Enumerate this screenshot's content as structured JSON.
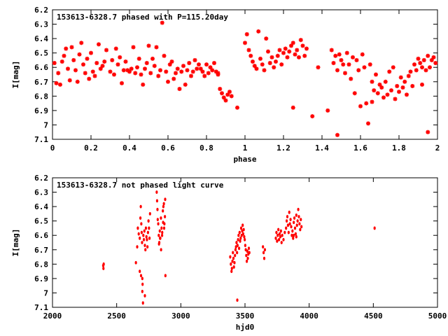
{
  "chart_data": [
    {
      "type": "scatter",
      "title": "153613-6328.7 phased with P=115.20day",
      "xlabel": "phase",
      "ylabel": "I[mag]",
      "xlim": [
        0,
        2
      ],
      "ylim": [
        6.2,
        7.1
      ],
      "y_inverted": true,
      "grid": false,
      "marker_color": "#ff0000",
      "marker": "asterisk",
      "x_ticks": [
        "0",
        "0.2",
        "0.4",
        "0.6",
        "0.8",
        "1",
        "1.2",
        "1.4",
        "1.6",
        "1.8",
        "2"
      ],
      "y_ticks": [
        "6.2",
        "6.3",
        "6.4",
        "6.5",
        "6.6",
        "6.7",
        "6.8",
        "6.9",
        "7",
        "7.1"
      ],
      "points": [
        [
          0.01,
          6.57
        ],
        [
          0.02,
          6.71
        ],
        [
          0.03,
          6.64
        ],
        [
          0.04,
          6.72
        ],
        [
          0.05,
          6.56
        ],
        [
          0.06,
          6.52
        ],
        [
          0.07,
          6.47
        ],
        [
          0.08,
          6.61
        ],
        [
          0.09,
          6.69
        ],
        [
          0.1,
          6.46
        ],
        [
          0.11,
          6.55
        ],
        [
          0.12,
          6.62
        ],
        [
          0.13,
          6.7
        ],
        [
          0.14,
          6.51
        ],
        [
          0.15,
          6.43
        ],
        [
          0.16,
          6.58
        ],
        [
          0.17,
          6.64
        ],
        [
          0.18,
          6.54
        ],
        [
          0.19,
          6.68
        ],
        [
          0.2,
          6.5
        ],
        [
          0.21,
          6.63
        ],
        [
          0.22,
          6.66
        ],
        [
          0.23,
          6.57
        ],
        [
          0.24,
          6.44
        ],
        [
          0.25,
          6.61
        ],
        [
          0.26,
          6.59
        ],
        [
          0.27,
          6.56
        ],
        [
          0.28,
          6.48
        ],
        [
          0.3,
          6.63
        ],
        [
          0.31,
          6.55
        ],
        [
          0.32,
          6.65
        ],
        [
          0.33,
          6.47
        ],
        [
          0.34,
          6.58
        ],
        [
          0.35,
          6.53
        ],
        [
          0.36,
          6.71
        ],
        [
          0.37,
          6.62
        ],
        [
          0.38,
          6.56
        ],
        [
          0.39,
          6.62
        ],
        [
          0.4,
          6.63
        ],
        [
          0.41,
          6.61
        ],
        [
          0.42,
          6.46
        ],
        [
          0.43,
          6.64
        ],
        [
          0.44,
          6.6
        ],
        [
          0.45,
          6.54
        ],
        [
          0.46,
          6.65
        ],
        [
          0.47,
          6.72
        ],
        [
          0.48,
          6.61
        ],
        [
          0.49,
          6.57
        ],
        [
          0.5,
          6.45
        ],
        [
          0.51,
          6.64
        ],
        [
          0.52,
          6.54
        ],
        [
          0.53,
          6.59
        ],
        [
          0.54,
          6.46
        ],
        [
          0.55,
          6.66
        ],
        [
          0.56,
          6.62
        ],
        [
          0.57,
          6.29
        ],
        [
          0.58,
          6.52
        ],
        [
          0.59,
          6.63
        ],
        [
          0.6,
          6.7
        ],
        [
          0.61,
          6.58
        ],
        [
          0.62,
          6.56
        ],
        [
          0.63,
          6.68
        ],
        [
          0.64,
          6.64
        ],
        [
          0.65,
          6.61
        ],
        [
          0.66,
          6.75
        ],
        [
          0.67,
          6.63
        ],
        [
          0.68,
          6.59
        ],
        [
          0.69,
          6.72
        ],
        [
          0.7,
          6.62
        ],
        [
          0.71,
          6.57
        ],
        [
          0.72,
          6.66
        ],
        [
          0.73,
          6.63
        ],
        [
          0.74,
          6.55
        ],
        [
          0.75,
          6.61
        ],
        [
          0.76,
          6.58
        ],
        [
          0.77,
          6.61
        ],
        [
          0.78,
          6.63
        ],
        [
          0.79,
          6.66
        ],
        [
          0.8,
          6.58
        ],
        [
          0.81,
          6.64
        ],
        [
          0.82,
          6.6
        ],
        [
          0.83,
          6.62
        ],
        [
          0.84,
          6.57
        ],
        [
          0.85,
          6.63
        ],
        [
          0.86,
          6.65
        ],
        [
          0.87,
          6.75
        ],
        [
          0.88,
          6.78
        ],
        [
          0.89,
          6.81
        ],
        [
          0.9,
          6.83
        ],
        [
          0.91,
          6.79
        ],
        [
          0.92,
          6.77
        ],
        [
          0.93,
          6.8
        ],
        [
          0.96,
          6.88
        ],
        [
          1.0,
          6.43
        ],
        [
          1.01,
          6.37
        ],
        [
          1.02,
          6.48
        ],
        [
          1.03,
          6.52
        ],
        [
          1.04,
          6.56
        ],
        [
          1.05,
          6.59
        ],
        [
          1.06,
          6.61
        ],
        [
          1.07,
          6.35
        ],
        [
          1.08,
          6.54
        ],
        [
          1.09,
          6.58
        ],
        [
          1.1,
          6.62
        ],
        [
          1.11,
          6.4
        ],
        [
          1.12,
          6.49
        ],
        [
          1.13,
          6.57
        ],
        [
          1.14,
          6.53
        ],
        [
          1.15,
          6.6
        ],
        [
          1.16,
          6.56
        ],
        [
          1.17,
          6.52
        ],
        [
          1.18,
          6.48
        ],
        [
          1.19,
          6.58
        ],
        [
          1.2,
          6.5
        ],
        [
          1.21,
          6.47
        ],
        [
          1.22,
          6.53
        ],
        [
          1.23,
          6.49
        ],
        [
          1.24,
          6.45
        ],
        [
          1.25,
          6.43
        ],
        [
          1.26,
          6.51
        ],
        [
          1.27,
          6.48
        ],
        [
          1.28,
          6.53
        ],
        [
          1.29,
          6.41
        ],
        [
          1.3,
          6.45
        ],
        [
          1.31,
          6.52
        ],
        [
          1.32,
          6.47
        ],
        [
          1.35,
          6.94
        ],
        [
          1.43,
          6.9
        ],
        [
          1.45,
          6.48
        ],
        [
          1.46,
          6.57
        ],
        [
          1.47,
          6.52
        ],
        [
          1.48,
          6.62
        ],
        [
          1.49,
          6.51
        ],
        [
          1.5,
          6.55
        ],
        [
          1.51,
          6.58
        ],
        [
          1.52,
          6.64
        ],
        [
          1.53,
          6.5
        ],
        [
          1.54,
          6.58
        ],
        [
          1.55,
          6.68
        ],
        [
          1.56,
          6.53
        ],
        [
          1.57,
          6.78
        ],
        [
          1.58,
          6.55
        ],
        [
          1.59,
          6.62
        ],
        [
          1.6,
          6.87
        ],
        [
          1.61,
          6.51
        ],
        [
          1.62,
          6.6
        ],
        [
          1.63,
          6.85
        ],
        [
          1.64,
          6.99
        ],
        [
          1.65,
          6.58
        ],
        [
          1.66,
          6.7
        ],
        [
          1.67,
          6.76
        ],
        [
          1.68,
          6.65
        ],
        [
          1.69,
          6.78
        ],
        [
          1.7,
          6.72
        ],
        [
          1.71,
          6.74
        ],
        [
          1.72,
          6.81
        ],
        [
          1.73,
          6.7
        ],
        [
          1.74,
          6.79
        ],
        [
          1.75,
          6.63
        ],
        [
          1.76,
          6.76
        ],
        [
          1.77,
          6.6
        ],
        [
          1.78,
          6.82
        ],
        [
          1.79,
          6.73
        ],
        [
          1.8,
          6.77
        ],
        [
          1.81,
          6.67
        ],
        [
          1.82,
          6.74
        ],
        [
          1.83,
          6.7
        ],
        [
          1.84,
          6.79
        ],
        [
          1.85,
          6.66
        ],
        [
          1.86,
          6.63
        ],
        [
          1.87,
          6.73
        ],
        [
          1.88,
          6.58
        ],
        [
          1.89,
          6.62
        ],
        [
          1.9,
          6.54
        ],
        [
          1.91,
          6.57
        ],
        [
          1.92,
          6.6
        ],
        [
          1.93,
          6.55
        ],
        [
          1.94,
          6.62
        ],
        [
          1.95,
          6.52
        ],
        [
          1.96,
          6.6
        ],
        [
          1.97,
          6.55
        ],
        [
          1.98,
          6.53
        ],
        [
          1.99,
          6.57
        ],
        [
          1.95,
          7.05
        ],
        [
          1.48,
          7.07
        ],
        [
          1.25,
          6.88
        ],
        [
          0.86,
          6.64
        ],
        [
          1.38,
          6.6
        ],
        [
          1.66,
          6.84
        ],
        [
          1.92,
          6.72
        ]
      ]
    },
    {
      "type": "scatter",
      "title": "153613-6328.7 not phased light curve",
      "xlabel": "hjd0",
      "ylabel": "I[mag]",
      "xlim": [
        2000,
        5000
      ],
      "ylim": [
        6.2,
        7.1
      ],
      "y_inverted": true,
      "grid": false,
      "marker_color": "#ff0000",
      "marker": "dot",
      "x_ticks": [
        "2000",
        "2500",
        "3000",
        "3500",
        "4000",
        "4500",
        "5000"
      ],
      "y_ticks": [
        "6.2",
        "6.3",
        "6.4",
        "6.5",
        "6.6",
        "6.7",
        "6.8",
        "6.9",
        "7",
        "7.1"
      ],
      "points": [
        [
          2395,
          6.81
        ],
        [
          2397,
          6.83
        ],
        [
          2399,
          6.8
        ],
        [
          2650,
          6.79
        ],
        [
          2660,
          6.68
        ],
        [
          2665,
          6.55
        ],
        [
          2672,
          6.59
        ],
        [
          2680,
          6.62
        ],
        [
          2685,
          6.48
        ],
        [
          2688,
          6.4
        ],
        [
          2692,
          6.52
        ],
        [
          2695,
          6.58
        ],
        [
          2698,
          6.65
        ],
        [
          2700,
          6.9
        ],
        [
          2702,
          6.94
        ],
        [
          2705,
          7.07
        ],
        [
          2708,
          6.6
        ],
        [
          2712,
          6.63
        ],
        [
          2716,
          6.57
        ],
        [
          2720,
          6.67
        ],
        [
          2724,
          6.7
        ],
        [
          2728,
          6.55
        ],
        [
          2732,
          6.61
        ],
        [
          2736,
          6.63
        ],
        [
          2740,
          6.68
        ],
        [
          2744,
          6.58
        ],
        [
          2748,
          6.5
        ],
        [
          2752,
          6.55
        ],
        [
          2756,
          6.62
        ],
        [
          2760,
          6.45
        ],
        [
          2680,
          6.85
        ],
        [
          2700,
          6.99
        ],
        [
          2690,
          6.88
        ],
        [
          2720,
          7.02
        ],
        [
          2812,
          6.3
        ],
        [
          2815,
          6.36
        ],
        [
          2818,
          6.42
        ],
        [
          2820,
          6.49
        ],
        [
          2824,
          6.52
        ],
        [
          2828,
          6.6
        ],
        [
          2832,
          6.65
        ],
        [
          2836,
          6.57
        ],
        [
          2840,
          6.62
        ],
        [
          2845,
          6.48
        ],
        [
          2850,
          6.55
        ],
        [
          2855,
          6.58
        ],
        [
          2860,
          6.43
        ],
        [
          2864,
          6.4
        ],
        [
          2868,
          6.38
        ],
        [
          2872,
          6.52
        ],
        [
          2876,
          6.47
        ],
        [
          2880,
          6.88
        ],
        [
          2878,
          6.35
        ],
        [
          2870,
          6.55
        ],
        [
          2862,
          6.51
        ],
        [
          2854,
          6.6
        ],
        [
          2846,
          6.7
        ],
        [
          2838,
          6.62
        ],
        [
          2830,
          6.66
        ],
        [
          3385,
          6.75
        ],
        [
          3390,
          6.8
        ],
        [
          3395,
          6.85
        ],
        [
          3398,
          6.83
        ],
        [
          3402,
          6.78
        ],
        [
          3406,
          6.72
        ],
        [
          3410,
          6.76
        ],
        [
          3414,
          6.82
        ],
        [
          3418,
          6.79
        ],
        [
          3422,
          6.74
        ],
        [
          3426,
          6.7
        ],
        [
          3430,
          6.68
        ],
        [
          3434,
          6.65
        ],
        [
          3438,
          6.72
        ],
        [
          3442,
          6.67
        ],
        [
          3446,
          6.63
        ],
        [
          3450,
          6.6
        ],
        [
          3454,
          6.69
        ],
        [
          3458,
          6.58
        ],
        [
          3462,
          6.64
        ],
        [
          3466,
          6.62
        ],
        [
          3470,
          6.55
        ],
        [
          3474,
          6.6
        ],
        [
          3478,
          6.57
        ],
        [
          3482,
          6.53
        ],
        [
          3486,
          6.59
        ],
        [
          3490,
          6.56
        ],
        [
          3494,
          6.61
        ],
        [
          3498,
          6.63
        ],
        [
          3502,
          6.67
        ],
        [
          3506,
          6.7
        ],
        [
          3510,
          6.74
        ],
        [
          3514,
          6.78
        ],
        [
          3518,
          6.71
        ],
        [
          3522,
          6.76
        ],
        [
          3526,
          6.73
        ],
        [
          3530,
          6.69
        ],
        [
          3534,
          6.72
        ],
        [
          3440,
          7.05
        ],
        [
          3640,
          6.68
        ],
        [
          3645,
          6.72
        ],
        [
          3650,
          6.76
        ],
        [
          3655,
          6.7
        ],
        [
          3740,
          6.62
        ],
        [
          3745,
          6.58
        ],
        [
          3750,
          6.64
        ],
        [
          3755,
          6.6
        ],
        [
          3760,
          6.56
        ],
        [
          3765,
          6.63
        ],
        [
          3770,
          6.59
        ],
        [
          3775,
          6.61
        ],
        [
          3780,
          6.57
        ],
        [
          3785,
          6.65
        ],
        [
          3790,
          6.6
        ],
        [
          3820,
          6.55
        ],
        [
          3825,
          6.5
        ],
        [
          3830,
          6.47
        ],
        [
          3835,
          6.53
        ],
        [
          3840,
          6.58
        ],
        [
          3845,
          6.44
        ],
        [
          3850,
          6.52
        ],
        [
          3855,
          6.49
        ],
        [
          3860,
          6.54
        ],
        [
          3865,
          6.6
        ],
        [
          3870,
          6.57
        ],
        [
          3875,
          6.62
        ],
        [
          3880,
          6.51
        ],
        [
          3885,
          6.48
        ],
        [
          3890,
          6.55
        ],
        [
          3895,
          6.59
        ],
        [
          3900,
          6.46
        ],
        [
          3905,
          6.53
        ],
        [
          3910,
          6.5
        ],
        [
          3915,
          6.42
        ],
        [
          3920,
          6.47
        ],
        [
          3925,
          6.52
        ],
        [
          3930,
          6.56
        ],
        [
          3935,
          6.49
        ],
        [
          3940,
          6.54
        ],
        [
          3810,
          6.58
        ],
        [
          3800,
          6.63
        ],
        [
          3880,
          6.6
        ],
        [
          3900,
          6.61
        ],
        [
          4510,
          6.55
        ]
      ]
    }
  ]
}
